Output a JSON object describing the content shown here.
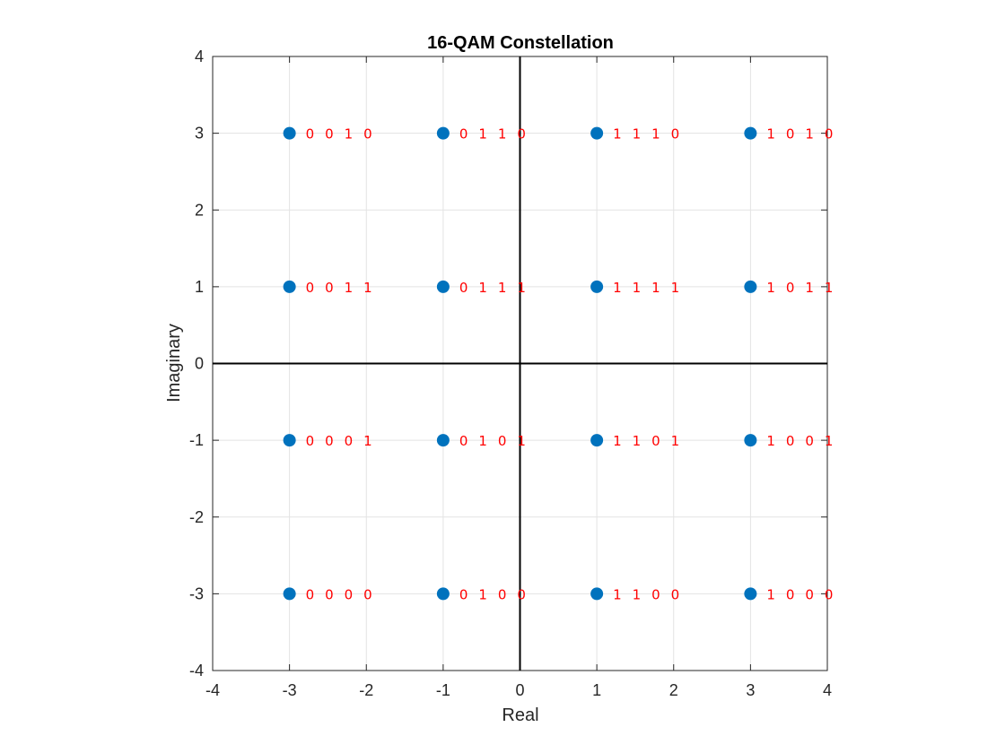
{
  "chart_data": {
    "type": "scatter",
    "title": "16-QAM Constellation",
    "xlabel": "Real",
    "ylabel": "Imaginary",
    "xlim": [
      -4,
      4
    ],
    "ylim": [
      -4,
      4
    ],
    "xticks": [
      "-4",
      "-3",
      "-2",
      "-1",
      "0",
      "1",
      "2",
      "3",
      "4"
    ],
    "yticks": [
      "-4",
      "-3",
      "-2",
      "-1",
      "0",
      "1",
      "2",
      "3",
      "4"
    ],
    "grid": true,
    "axis_lines_through_origin": true,
    "marker_color": "#0072BD",
    "label_color": "#FF0000",
    "points": [
      {
        "x": -3,
        "y": 3,
        "label": "0 0 1 0"
      },
      {
        "x": -1,
        "y": 3,
        "label": "0 1 1 0"
      },
      {
        "x": 1,
        "y": 3,
        "label": "1 1 1 0"
      },
      {
        "x": 3,
        "y": 3,
        "label": "1 0 1 0"
      },
      {
        "x": -3,
        "y": 1,
        "label": "0 0 1 1"
      },
      {
        "x": -1,
        "y": 1,
        "label": "0 1 1 1"
      },
      {
        "x": 1,
        "y": 1,
        "label": "1 1 1 1"
      },
      {
        "x": 3,
        "y": 1,
        "label": "1 0 1 1"
      },
      {
        "x": -3,
        "y": -1,
        "label": "0 0 0 1"
      },
      {
        "x": -1,
        "y": -1,
        "label": "0 1 0 1"
      },
      {
        "x": 1,
        "y": -1,
        "label": "1 1 0 1"
      },
      {
        "x": 3,
        "y": -1,
        "label": "1 0 0 1"
      },
      {
        "x": -3,
        "y": -3,
        "label": "0 0 0 0"
      },
      {
        "x": -1,
        "y": -3,
        "label": "0 1 0 0"
      },
      {
        "x": 1,
        "y": -3,
        "label": "1 1 0 0"
      },
      {
        "x": 3,
        "y": -3,
        "label": "1 0 0 0"
      }
    ]
  }
}
